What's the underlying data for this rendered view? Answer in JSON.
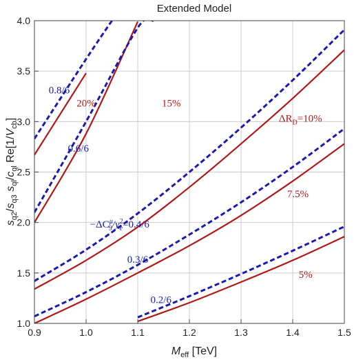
{
  "chart_data": {
    "type": "line",
    "title": "Extended Model",
    "xlabel": {
      "main": "M",
      "sub": "eff",
      "unit": " [TeV]"
    },
    "ylabel": "s_q2/s_q3 s_ql/c_ql Re[1/V_cb]",
    "xlim": [
      0.9,
      1.5
    ],
    "ylim": [
      1.0,
      4.0
    ],
    "xticks": [
      "0.9",
      "1.0",
      "1.1",
      "1.2",
      "1.3",
      "1.4",
      "1.5"
    ],
    "yticks": [
      "1.0",
      "1.5",
      "2.0",
      "2.5",
      "3.0",
      "3.5",
      "4.0"
    ],
    "grid": true,
    "colors": {
      "red": "#b01818",
      "blue": "#1a1ab0"
    },
    "series": [
      {
        "label": "ΔR_D=10%",
        "group": "red",
        "style": "solid",
        "x": [
          0.9,
          1.0,
          1.1,
          1.2,
          1.3,
          1.4,
          1.5
        ],
        "y": [
          1.34,
          1.625,
          1.955,
          2.35,
          2.78,
          3.23,
          3.71
        ]
      },
      {
        "label": "15%",
        "group": "red",
        "style": "solid",
        "x": [
          0.9,
          1.0,
          1.1
        ],
        "y": [
          2.0,
          2.88,
          3.99
        ]
      },
      {
        "label": "20%",
        "group": "red",
        "style": "solid",
        "x": [
          0.9,
          1.0
        ],
        "y": [
          2.67,
          3.48
        ]
      },
      {
        "label": "7.5%",
        "group": "red",
        "style": "solid",
        "x": [
          0.9,
          1.0,
          1.1,
          1.2,
          1.3,
          1.4,
          1.5
        ],
        "y": [
          1.0,
          1.24,
          1.5,
          1.77,
          2.07,
          2.41,
          2.78
        ]
      },
      {
        "label": "5%",
        "group": "red",
        "style": "solid",
        "x": [
          1.1,
          1.2,
          1.3,
          1.4,
          1.5
        ],
        "y": [
          1.02,
          1.205,
          1.41,
          1.625,
          1.86
        ]
      },
      {
        "label": "0.8/6",
        "group": "blue",
        "style": "dashed",
        "x": [
          0.9,
          1.0,
          1.05
        ],
        "y": [
          2.83,
          3.62,
          4.0
        ]
      },
      {
        "label": "0.6/6",
        "group": "blue",
        "style": "dashed",
        "x": [
          0.9,
          1.0,
          1.1,
          1.13
        ],
        "y": [
          2.1,
          3.0,
          3.93,
          4.0
        ]
      },
      {
        "label": "-ΔC9μ/ye²=0.4/6",
        "group": "blue",
        "style": "dashed",
        "x": [
          0.9,
          1.0,
          1.1,
          1.2,
          1.3,
          1.4,
          1.5
        ],
        "y": [
          1.42,
          1.73,
          2.09,
          2.5,
          2.94,
          3.41,
          3.91
        ]
      },
      {
        "label": "0.3/6",
        "group": "blue",
        "style": "dashed",
        "x": [
          0.9,
          1.0,
          1.1,
          1.2,
          1.3,
          1.4,
          1.5
        ],
        "y": [
          1.07,
          1.31,
          1.58,
          1.88,
          2.2,
          2.55,
          2.93
        ]
      },
      {
        "label": "0.2/6",
        "group": "blue",
        "style": "dashed",
        "x": [
          1.1,
          1.2,
          1.3,
          1.4,
          1.5
        ],
        "y": [
          1.06,
          1.27,
          1.49,
          1.72,
          1.96
        ]
      }
    ],
    "annotations": [
      {
        "key": "label-0.8-6",
        "text": "0.8/6",
        "color": "blue",
        "x": 0.948,
        "y": 3.28
      },
      {
        "key": "label-20pct",
        "text": "20%",
        "color": "red",
        "x": 1.0,
        "y": 3.15
      },
      {
        "key": "label-15pct",
        "text": "15%",
        "color": "red",
        "x": 1.165,
        "y": 3.15
      },
      {
        "key": "label-0.6-6",
        "text": "0.6/6",
        "color": "blue",
        "x": 0.985,
        "y": 2.7
      },
      {
        "key": "label-dr10",
        "color": "red",
        "x": 1.415,
        "y": 3.0,
        "parts": {
          "pre": "ΔR",
          "sub": "D",
          "post": "=10%"
        }
      },
      {
        "key": "label-7.5pct",
        "text": "7.5%",
        "color": "red",
        "x": 1.41,
        "y": 2.25
      },
      {
        "key": "label-dc9",
        "color": "blue",
        "x": 1.065,
        "y": 1.95,
        "parts": {
          "pre": "−ΔC",
          "sub1": "9",
          "sup1": "μ",
          "mid": "/y",
          "sub2": "e",
          "sup2": "2",
          "post": "=0.4/6"
        }
      },
      {
        "key": "label-0.3-6",
        "text": "0.3/6",
        "color": "blue",
        "x": 1.1,
        "y": 1.6
      },
      {
        "key": "label-5pct",
        "text": "5%",
        "color": "red",
        "x": 1.425,
        "y": 1.45
      },
      {
        "key": "label-0.2-6",
        "text": "0.2/6",
        "color": "blue",
        "x": 1.145,
        "y": 1.2
      }
    ]
  }
}
